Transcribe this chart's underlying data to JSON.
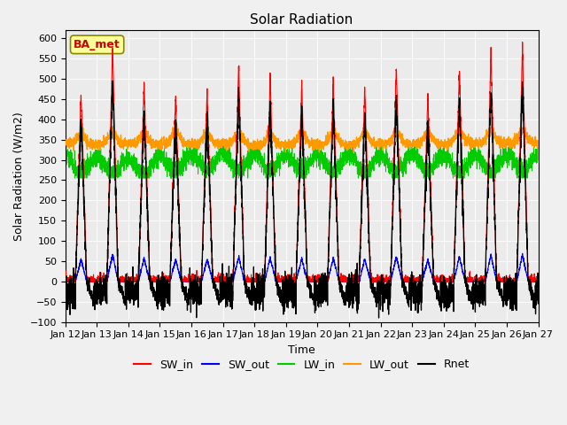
{
  "title": "Solar Radiation",
  "xlabel": "Time",
  "ylabel": "Solar Radiation (W/m2)",
  "ylim": [
    -100,
    620
  ],
  "yticks": [
    -100,
    -50,
    0,
    50,
    100,
    150,
    200,
    250,
    300,
    350,
    400,
    450,
    500,
    550,
    600
  ],
  "n_days": 15,
  "start_day": 12,
  "colors": {
    "SW_in": "#ff0000",
    "SW_out": "#0000ff",
    "LW_in": "#00cc00",
    "LW_out": "#ff9900",
    "Rnet": "#000000"
  },
  "annotation_text": "BA_met",
  "annotation_color": "#cc0000",
  "annotation_bg": "#ffff99",
  "plot_bg": "#ebebeb"
}
